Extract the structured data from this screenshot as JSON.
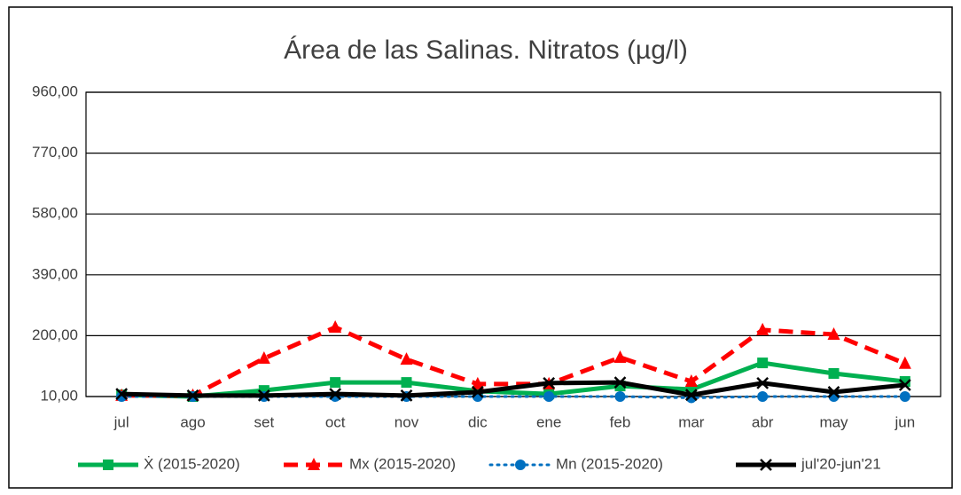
{
  "chart_data": {
    "type": "line",
    "title": "Área de las Salinas. Nitratos (µg/l)",
    "categories": [
      "jul",
      "ago",
      "set",
      "oct",
      "nov",
      "dic",
      "ene",
      "feb",
      "mar",
      "abr",
      "may",
      "jun"
    ],
    "series": [
      {
        "name": "Ẋ (2015-2020)",
        "color": "#00b050",
        "marker": "square",
        "dash": "solid",
        "values": [
          15,
          10,
          29,
          54,
          54,
          27,
          18,
          43,
          32,
          115,
          82,
          57
        ]
      },
      {
        "name": "Mx (2015-2020)",
        "color": "#ff0000",
        "marker": "triangle",
        "dash": "dash",
        "values": [
          13,
          13,
          129,
          226,
          126,
          49,
          49,
          132,
          57,
          218,
          204,
          113
        ]
      },
      {
        "name": "Mn (2015-2020)",
        "color": "#0070c0",
        "marker": "circle",
        "dash": "dot",
        "values": [
          10,
          10,
          10,
          10,
          10,
          10,
          10,
          10,
          6,
          10,
          10,
          10
        ]
      },
      {
        "name": "jul'20-jun'21",
        "color": "#000000",
        "marker": "x",
        "dash": "solid",
        "values": [
          18,
          13,
          13,
          18,
          13,
          24,
          52,
          54,
          15,
          52,
          24,
          46
        ]
      }
    ],
    "ylim": [
      10,
      960
    ],
    "yticks": [
      {
        "value": 10,
        "label": "10,00"
      },
      {
        "value": 200,
        "label": "200,00"
      },
      {
        "value": 390,
        "label": "390,00"
      },
      {
        "value": 580,
        "label": "580,00"
      },
      {
        "value": 770,
        "label": "770,00"
      },
      {
        "value": 960,
        "label": "960,00"
      }
    ],
    "grid": true,
    "legend": "bottom"
  }
}
